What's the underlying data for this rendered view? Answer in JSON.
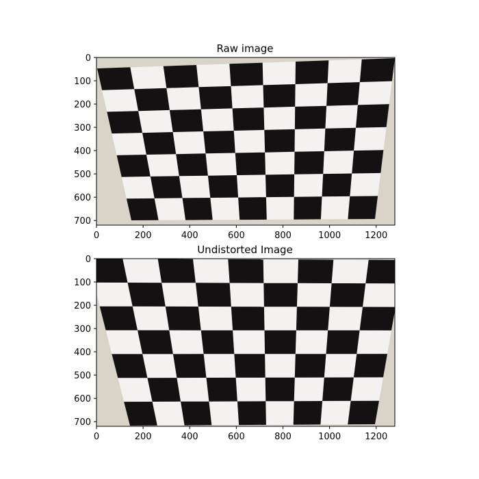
{
  "figure": {
    "panels": [
      {
        "id": "raw",
        "title": "Raw image",
        "x_ticks": [
          "0",
          "200",
          "400",
          "600",
          "800",
          "1000",
          "1200"
        ],
        "y_ticks": [
          "0",
          "100",
          "200",
          "300",
          "400",
          "500",
          "600",
          "700"
        ],
        "x_range": [
          0,
          1280
        ],
        "y_range": [
          720,
          0
        ]
      },
      {
        "id": "undistorted",
        "title": "Undistorted Image",
        "x_ticks": [
          "0",
          "200",
          "400",
          "600",
          "800",
          "1000",
          "1200"
        ],
        "y_ticks": [
          "0",
          "100",
          "200",
          "300",
          "400",
          "500",
          "600",
          "700"
        ],
        "x_range": [
          0,
          1280
        ],
        "y_range": [
          720,
          0
        ]
      }
    ],
    "colors": {
      "paper": "#f3f2f0",
      "wall": "#d8d4c7",
      "square": "#141112",
      "axis": "#000000"
    }
  }
}
